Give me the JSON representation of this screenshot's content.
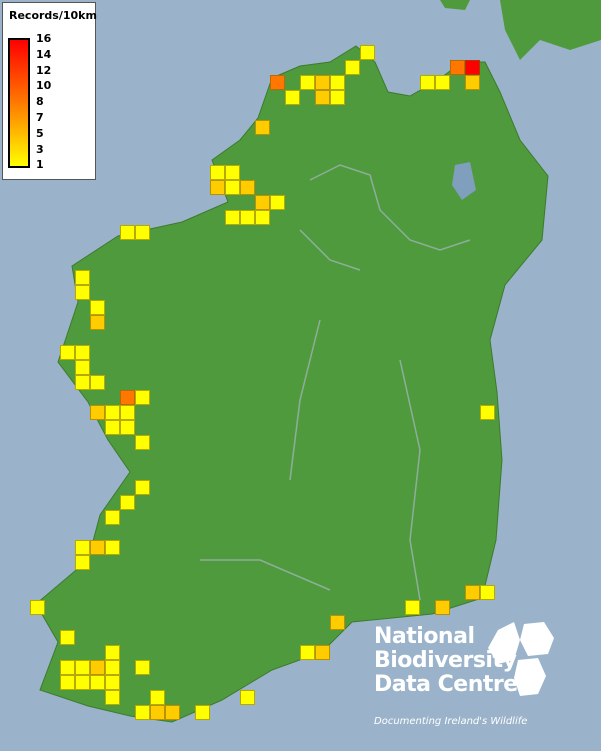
{
  "legend": {
    "title": "Records/10km",
    "ticks": [
      "16",
      "14",
      "12",
      "10",
      "8",
      "7",
      "5",
      "3",
      "1"
    ],
    "colors": {
      "max": "#ff0000",
      "mid": "#ff8000",
      "min": "#ffff00"
    }
  },
  "map": {
    "sea_color": "#9ab3cb",
    "land_color": "#4f9a3c",
    "cell_counts": [
      1,
      1,
      9,
      1,
      4,
      1,
      1,
      4,
      1,
      1,
      1,
      9,
      16,
      4,
      4,
      1,
      1,
      4,
      1,
      4,
      4,
      1,
      1,
      1,
      1,
      1,
      1,
      1,
      1,
      1,
      4,
      1,
      1,
      1,
      1,
      1,
      9,
      1,
      4,
      1,
      1,
      1,
      1,
      1,
      1,
      1,
      1,
      1,
      4,
      1,
      1,
      1,
      1,
      1,
      1,
      1,
      4,
      1,
      1,
      1,
      1,
      1,
      1,
      1,
      1,
      1,
      1,
      4,
      4,
      1,
      1,
      4,
      4,
      1,
      4,
      4,
      1,
      1,
      1
    ]
  },
  "logo": {
    "line1": "National",
    "line2": "Biodiversity",
    "line3": "Data Centre",
    "tagline": "Documenting Ireland's Wildlife"
  }
}
